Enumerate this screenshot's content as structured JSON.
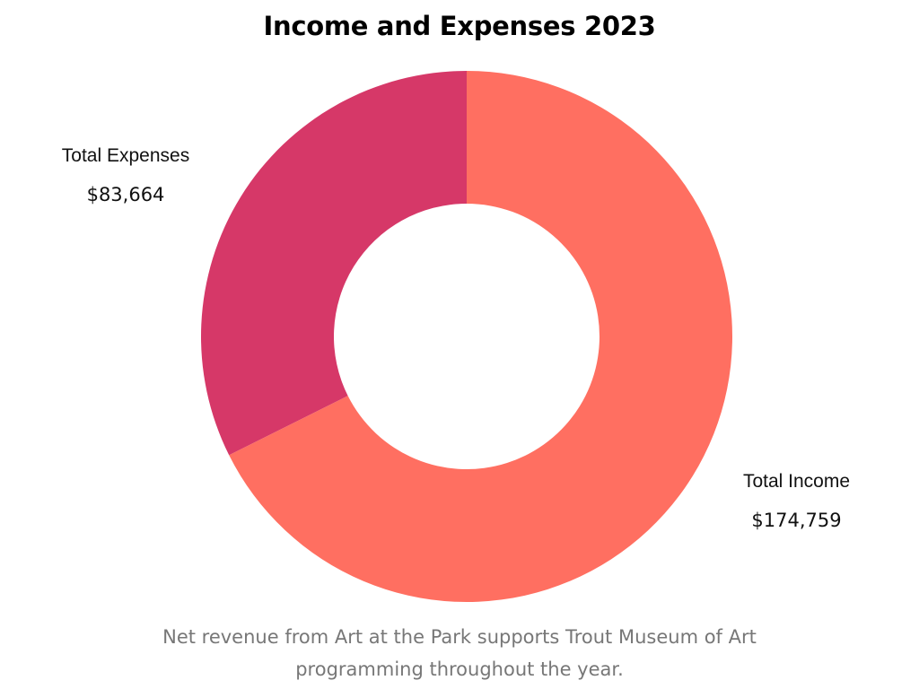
{
  "chart_data": {
    "type": "pie",
    "donut": true,
    "title": "Income and Expenses 2023",
    "slices": [
      {
        "label": "Total Income",
        "value": 174759,
        "display_value": "$174,759",
        "color": "#FF6F61"
      },
      {
        "label": "Total Expenses",
        "value": 83664,
        "display_value": "$83,664",
        "color": "#D63868"
      }
    ],
    "legend": "none",
    "grid": false
  },
  "caption": {
    "line1": "Net revenue from Art at the Park supports Trout Museum of Art",
    "line2": "programming throughout the year."
  },
  "colors": {
    "background": "#FFFFFF",
    "caption_text": "#777777"
  }
}
